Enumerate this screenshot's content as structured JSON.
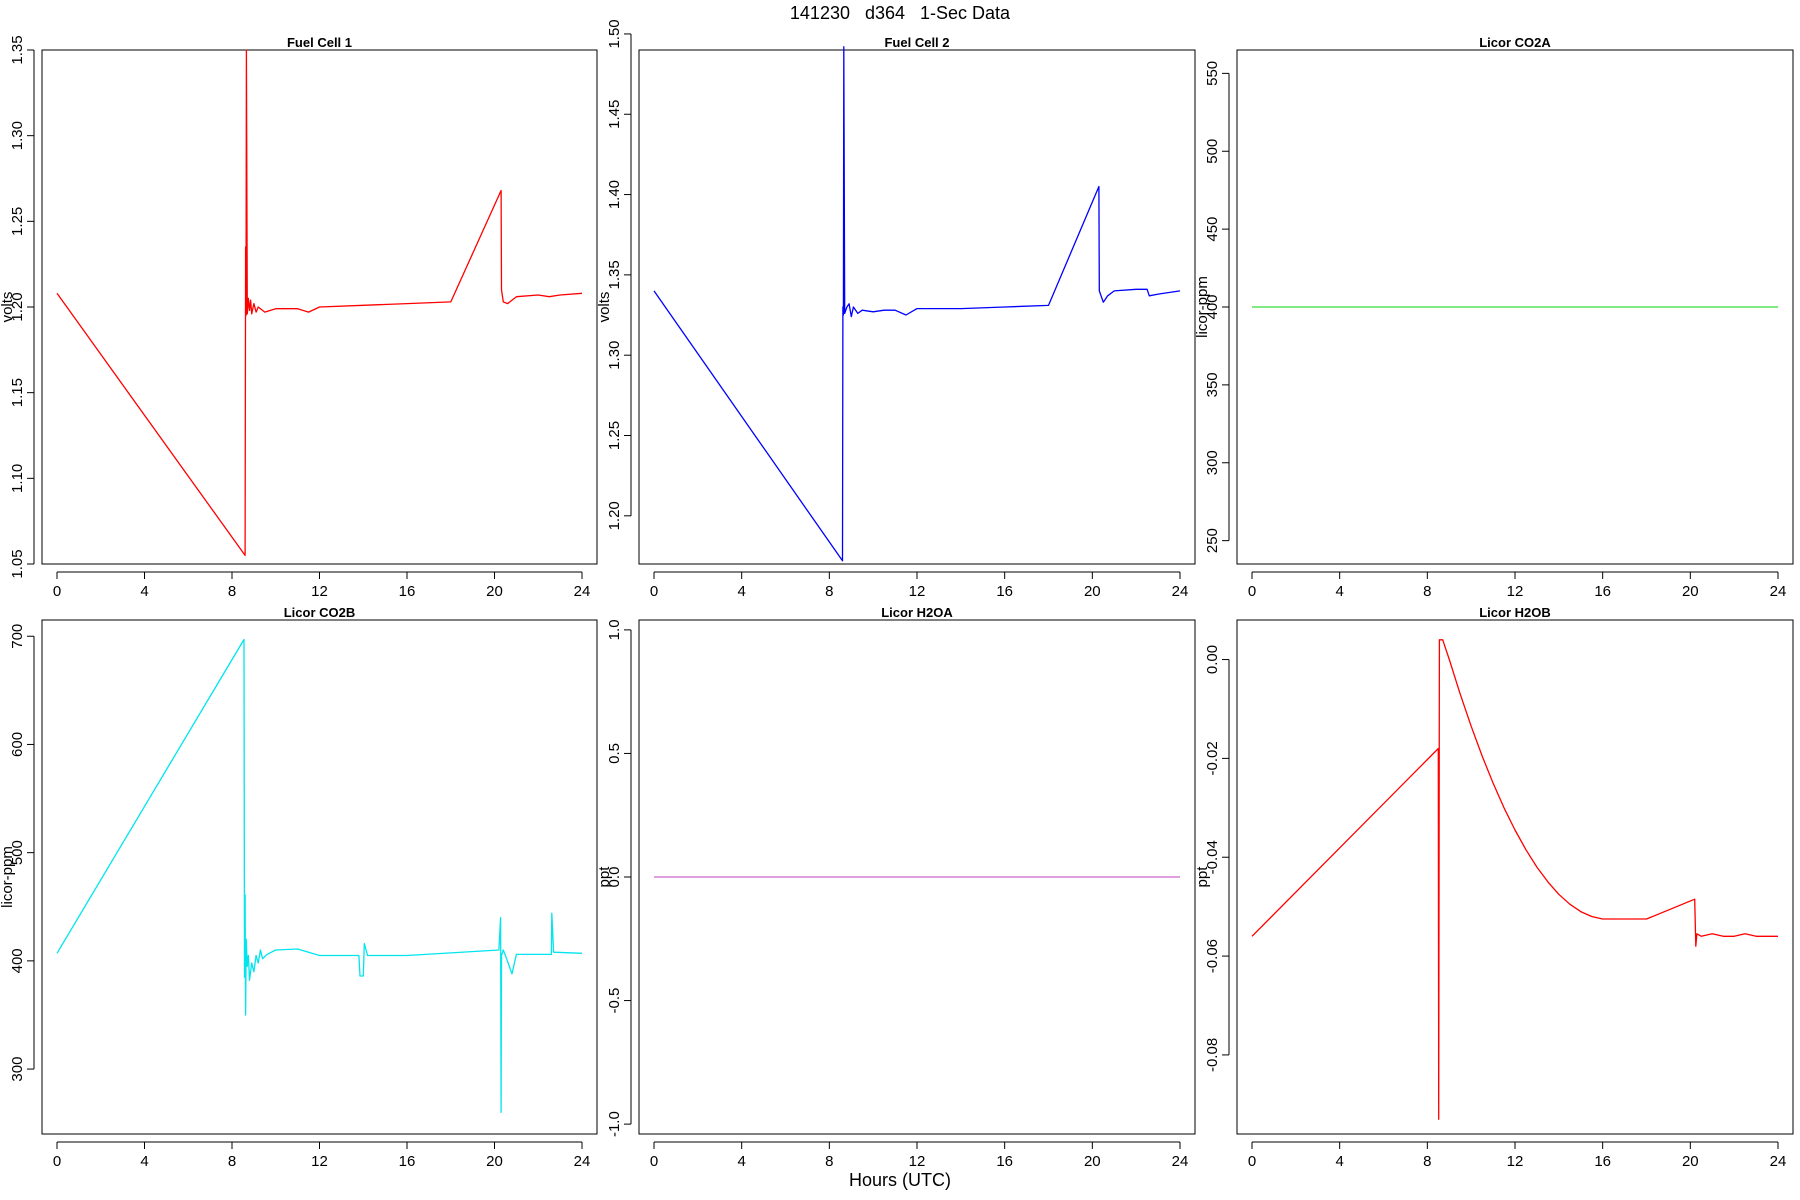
{
  "title": "141230   d364   1-Sec Data",
  "xlabel": "Hours (UTC)",
  "chart_data": [
    {
      "type": "line",
      "title": "Fuel Cell 1",
      "ylabel": "volts",
      "color": "#ff0000",
      "xlim": [
        0,
        24
      ],
      "ylim": [
        1.05,
        1.35
      ],
      "xticks": [
        "0",
        "4",
        "8",
        "12",
        "16",
        "20",
        "24"
      ],
      "yticks": [
        "1.05",
        "1.10",
        "1.15",
        "1.20",
        "1.25",
        "1.30",
        "1.35"
      ],
      "series": [
        {
          "x": [
            0,
            8.6,
            8.62,
            8.64,
            8.66,
            8.7,
            8.75,
            8.8,
            8.85,
            8.9,
            9.0,
            9.1,
            9.2,
            9.5,
            10,
            11,
            11.5,
            12,
            14,
            16,
            18,
            20.3,
            20.32,
            20.4,
            20.6,
            21,
            22,
            22.5,
            23,
            24
          ],
          "y": [
            1.208,
            1.055,
            1.235,
            1.195,
            1.35,
            1.196,
            1.205,
            1.198,
            1.204,
            1.196,
            1.202,
            1.197,
            1.2,
            1.197,
            1.199,
            1.199,
            1.197,
            1.2,
            1.201,
            1.202,
            1.203,
            1.268,
            1.21,
            1.203,
            1.202,
            1.206,
            1.207,
            1.206,
            1.207,
            1.208
          ]
        }
      ]
    },
    {
      "type": "line",
      "title": "Fuel Cell 2",
      "ylabel": "volts",
      "color": "#0000ff",
      "xlim": [
        0,
        24
      ],
      "ylim": [
        1.17,
        1.49
      ],
      "xticks": [
        "0",
        "4",
        "8",
        "12",
        "16",
        "20",
        "24"
      ],
      "yticks": [
        "1.20",
        "1.25",
        "1.30",
        "1.35",
        "1.40",
        "1.45",
        "1.50"
      ],
      "series": [
        {
          "x": [
            0,
            8.6,
            8.62,
            8.64,
            8.66,
            8.7,
            8.8,
            8.9,
            9.0,
            9.1,
            9.3,
            9.5,
            10,
            10.5,
            11,
            11.5,
            12,
            14,
            16,
            18,
            20.3,
            20.32,
            20.5,
            20.7,
            21,
            22,
            22.5,
            22.6,
            23,
            24
          ],
          "y": [
            1.34,
            1.172,
            1.33,
            1.325,
            1.492,
            1.326,
            1.33,
            1.332,
            1.324,
            1.33,
            1.326,
            1.328,
            1.327,
            1.328,
            1.328,
            1.325,
            1.329,
            1.329,
            1.33,
            1.331,
            1.405,
            1.34,
            1.333,
            1.337,
            1.34,
            1.341,
            1.341,
            1.337,
            1.338,
            1.34
          ]
        }
      ]
    },
    {
      "type": "line",
      "title": "Licor CO2A",
      "ylabel": "licor-ppm",
      "color": "#33dd33",
      "xlim": [
        0,
        24
      ],
      "ylim": [
        235,
        565
      ],
      "xticks": [
        "0",
        "4",
        "8",
        "12",
        "16",
        "20",
        "24"
      ],
      "yticks": [
        "250",
        "300",
        "350",
        "400",
        "450",
        "500",
        "550"
      ],
      "series": [
        {
          "x": [
            0,
            24
          ],
          "y": [
            400,
            400
          ]
        }
      ]
    },
    {
      "type": "line",
      "title": "Licor CO2B",
      "ylabel": "licor-ppm",
      "color": "#00e5ee",
      "xlim": [
        0,
        24
      ],
      "ylim": [
        240,
        715
      ],
      "xticks": [
        "0",
        "4",
        "8",
        "12",
        "16",
        "20",
        "24"
      ],
      "yticks": [
        "300",
        "400",
        "500",
        "600",
        "700"
      ],
      "series": [
        {
          "x": [
            0,
            8.55,
            8.57,
            8.6,
            8.62,
            8.65,
            8.7,
            8.75,
            8.8,
            8.9,
            9.0,
            9.1,
            9.2,
            9.3,
            9.4,
            9.6,
            10,
            11,
            12,
            13.8,
            13.85,
            14.0,
            14.05,
            14.2,
            16,
            20.2,
            20.28,
            20.3,
            20.32,
            20.4,
            20.5,
            20.8,
            21.0,
            22.6,
            22.62,
            22.7,
            24
          ],
          "y": [
            407,
            697,
            385,
            461,
            350,
            420,
            395,
            405,
            382,
            398,
            390,
            405,
            398,
            410,
            402,
            406,
            410,
            411,
            405,
            405,
            386,
            386,
            416,
            405,
            405,
            410,
            440,
            260,
            405,
            410,
            405,
            388,
            406,
            406,
            444,
            408,
            407
          ]
        }
      ]
    },
    {
      "type": "line",
      "title": "Licor H2OA",
      "ylabel": "ppt",
      "color": "#cc66cc",
      "xlim": [
        0,
        24
      ],
      "ylim": [
        -1.04,
        1.04
      ],
      "xticks": [
        "0",
        "4",
        "8",
        "12",
        "16",
        "20",
        "24"
      ],
      "yticks": [
        "-1.0",
        "-0.5",
        "0.0",
        "0.5",
        "1.0"
      ],
      "series": [
        {
          "x": [
            0,
            24
          ],
          "y": [
            0,
            0
          ]
        }
      ]
    },
    {
      "type": "line",
      "title": "Licor H2OB",
      "ylabel": "ppt",
      "color": "#ff0000",
      "xlim": [
        0,
        24
      ],
      "ylim": [
        -0.096,
        0.008
      ],
      "xticks": [
        "0",
        "4",
        "8",
        "12",
        "16",
        "20",
        "24"
      ],
      "yticks": [
        "-0.08",
        "-0.06",
        "-0.04",
        "-0.02",
        "0.00"
      ],
      "series": [
        {
          "x": [
            0,
            8.5,
            8.52,
            8.55,
            8.7,
            9,
            9.5,
            10,
            10.5,
            11,
            11.5,
            12,
            12.5,
            13,
            13.5,
            14,
            14.5,
            15,
            15.5,
            16,
            16.5,
            17,
            17.5,
            18,
            20.2,
            20.25,
            20.3,
            20.5,
            21,
            21.5,
            22,
            22.5,
            23,
            23.5,
            24
          ],
          "y": [
            -0.056,
            -0.018,
            -0.093,
            0.004,
            0.004,
            0.0,
            -0.007,
            -0.0135,
            -0.0195,
            -0.025,
            -0.03,
            -0.0345,
            -0.0385,
            -0.042,
            -0.045,
            -0.0475,
            -0.0495,
            -0.051,
            -0.052,
            -0.0525,
            -0.0525,
            -0.0525,
            -0.0525,
            -0.0525,
            -0.0485,
            -0.058,
            -0.0555,
            -0.056,
            -0.0555,
            -0.056,
            -0.056,
            -0.0555,
            -0.056,
            -0.056,
            -0.056
          ]
        }
      ]
    }
  ]
}
